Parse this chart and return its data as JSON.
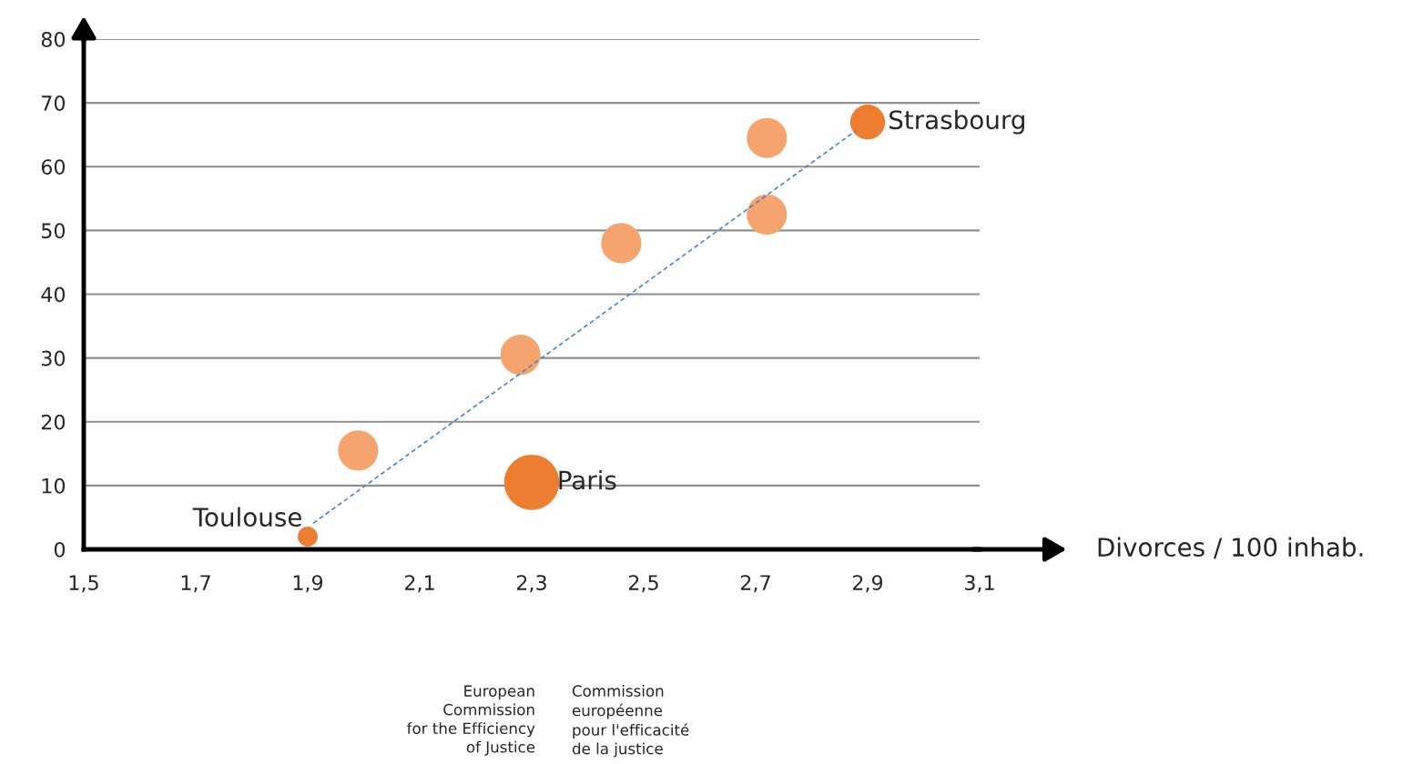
{
  "chart_data": {
    "type": "bubble",
    "xlabel": "Divorces / 100 inhab.",
    "xlim": [
      1.5,
      3.1
    ],
    "xticks": [
      {
        "value": 1.5,
        "label": "1,5"
      },
      {
        "value": 1.7,
        "label": "1,7"
      },
      {
        "value": 1.9,
        "label": "1,9"
      },
      {
        "value": 2.1,
        "label": "2,1"
      },
      {
        "value": 2.3,
        "label": "2,3"
      },
      {
        "value": 2.5,
        "label": "2,5"
      },
      {
        "value": 2.7,
        "label": "2,7"
      },
      {
        "value": 2.9,
        "label": "2,9"
      },
      {
        "value": 3.1,
        "label": "3,1"
      }
    ],
    "ylim": [
      0,
      80
    ],
    "yticks": [
      0,
      10,
      20,
      30,
      40,
      50,
      60,
      70,
      80
    ],
    "grid": "y",
    "series": [
      {
        "color": "#f4a46c",
        "x": [
          1.99,
          2.28,
          2.46,
          2.72,
          2.72
        ],
        "values": [
          15.5,
          30.5,
          48,
          64.5,
          52.5
        ],
        "sizes": [
          0.53,
          0.53,
          0.53,
          0.53,
          0.53
        ]
      },
      {
        "color": "#ec7d31",
        "x": [
          1.9,
          2.3,
          2.9
        ],
        "values": [
          2,
          10.5,
          67
        ],
        "sizes": [
          0.13,
          1,
          0.4
        ]
      },
      {
        "type": "line",
        "color": "#4a86c8",
        "line_style": "dashed",
        "marker": "none",
        "x": [
          1.91,
          2.88
        ],
        "values": [
          4.1,
          65.7
        ]
      }
    ],
    "annotations": [
      {
        "text": "Toulouse",
        "x": 1.9,
        "y": 2
      },
      {
        "text": "Paris",
        "x": 2.3,
        "y": 10.5
      },
      {
        "text": "Strasbourg",
        "x": 2.9,
        "y": 67
      },
      "European\nCommission\nfor the Efficiency\nof Justice",
      "Commission\neuropéenne\npour l'efficacité\nde la justice"
    ]
  }
}
